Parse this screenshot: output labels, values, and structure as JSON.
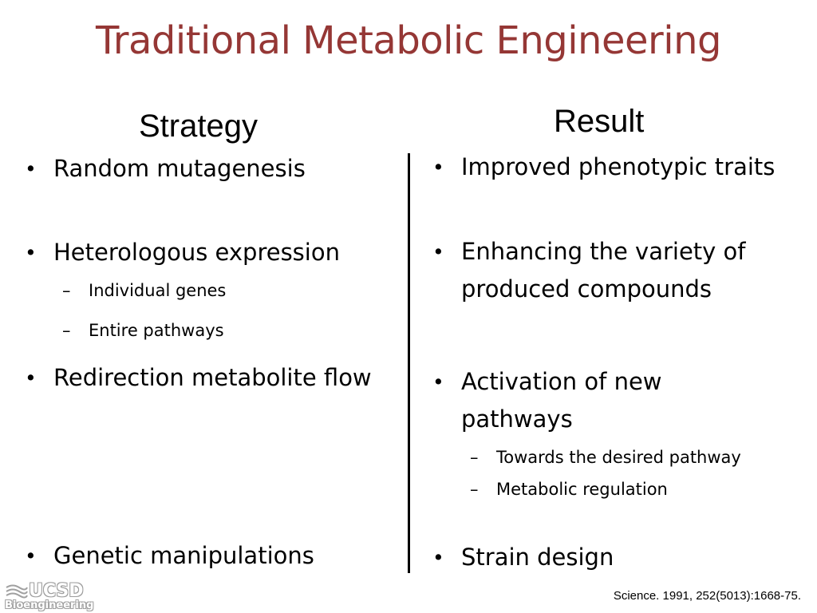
{
  "title": "Traditional Metabolic Engineering",
  "headings": {
    "strategy": "Strategy",
    "result": "Result"
  },
  "bullet_symbol": "•",
  "dash_symbol": "–",
  "strategy": {
    "random": "Random mutagenesis",
    "hetero": "Heterologous expression",
    "hetero_sub1": "Individual genes",
    "hetero_sub2": "Entire pathways",
    "redirection": "Redirection metabolite flow",
    "genetic": "Genetic manipulations"
  },
  "result": {
    "improved": "Improved phenotypic traits",
    "enhancing": "Enhancing the variety of produced compounds",
    "activation": "Activation of new pathways",
    "activation_sub1": "Towards the desired pathway",
    "activation_sub2": "Metabolic regulation",
    "strain": "Strain design"
  },
  "logo": {
    "name": "UCSD",
    "department": "Bioengineering"
  },
  "citation": "Science. 1991, 252(5013):1668-75.",
  "colors": {
    "title": "#953735",
    "text": "#000000"
  }
}
